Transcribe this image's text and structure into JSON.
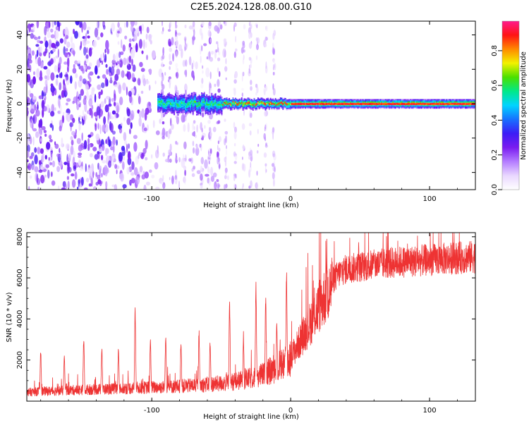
{
  "title": "C2E5.2024.128.08.00.G10",
  "colors": {
    "snr_line": "#ee3333",
    "spectrum_cmap": [
      "#ffffff",
      "#e9d7ff",
      "#b47cff",
      "#7a1cf0",
      "#3c1cf6",
      "#1870ff",
      "#00d4ff",
      "#00e88a",
      "#4ae000",
      "#f2f200",
      "#ff8a00",
      "#ff1414",
      "#ff1a8c"
    ]
  },
  "chart_data": [
    {
      "type": "heatmap",
      "title": "C2E5.2024.128.08.00.G10",
      "xlabel": "Height of straight line (km)",
      "ylabel": "Frequency (Hz)",
      "xlim": [
        -190,
        133
      ],
      "ylim": [
        -50,
        48
      ],
      "xticks": [
        -100,
        0,
        100
      ],
      "yticks": [
        -40,
        -20,
        0,
        20,
        40
      ],
      "colorbar": {
        "label": "Normalized spectral amplitude",
        "range": [
          0,
          0.97
        ],
        "ticks": [
          0.0,
          0.2,
          0.4,
          0.6,
          0.8
        ]
      },
      "features": [
        {
          "x_range": [
            -190,
            -120
          ],
          "description_value": "broadband noise across all frequencies",
          "amplitude": 0.3
        },
        {
          "x_range": [
            -95,
            -50
          ],
          "f_center": 0,
          "f_halfwidth": 6,
          "amplitude": 0.45
        },
        {
          "x_range": [
            -50,
            0
          ],
          "f_center": 0,
          "f_halfwidth": 3,
          "amplitude": 0.85
        },
        {
          "x_range": [
            0,
            133
          ],
          "f_center": 0,
          "f_halfwidth": 2.5,
          "amplitude": 0.95
        }
      ]
    },
    {
      "type": "line",
      "xlabel": "Height of straight line (km)",
      "ylabel": "SNR (10 * v/v)",
      "xlim": [
        -190,
        133
      ],
      "ylim": [
        0,
        8200
      ],
      "xticks": [
        -100,
        0,
        100
      ],
      "yticks": [
        2000,
        4000,
        6000,
        8000
      ],
      "series": [
        {
          "x": [
            -190,
            -180,
            -170,
            -160,
            -150,
            -140,
            -130,
            -120,
            -110,
            -100,
            -90,
            -80,
            -70,
            -60,
            -50,
            -40,
            -30,
            -20,
            -10,
            0,
            5,
            10,
            15,
            20,
            25,
            30,
            35,
            40,
            50,
            60,
            70,
            80,
            90,
            100,
            110,
            120,
            133
          ],
          "y": [
            450,
            500,
            520,
            550,
            580,
            600,
            620,
            650,
            680,
            700,
            720,
            760,
            800,
            850,
            900,
            1000,
            1150,
            1350,
            1700,
            2200,
            2800,
            3400,
            4000,
            4700,
            5300,
            5900,
            6300,
            6500,
            6600,
            6700,
            6800,
            6850,
            6900,
            6950,
            7000,
            7050,
            7100
          ]
        }
      ],
      "spikes": [
        {
          "x": -180,
          "y": 2550
        },
        {
          "x": -163,
          "y": 2300
        },
        {
          "x": -149,
          "y": 3300
        },
        {
          "x": -136,
          "y": 2800
        },
        {
          "x": -124,
          "y": 2700
        },
        {
          "x": -112,
          "y": 4700
        },
        {
          "x": -101,
          "y": 3200
        },
        {
          "x": -90,
          "y": 3300
        },
        {
          "x": -79,
          "y": 3100
        },
        {
          "x": -66,
          "y": 3500
        },
        {
          "x": -58,
          "y": 3100
        },
        {
          "x": -44,
          "y": 4900
        },
        {
          "x": -34,
          "y": 3400
        },
        {
          "x": -25,
          "y": 6000
        },
        {
          "x": -18,
          "y": 5400
        },
        {
          "x": -10,
          "y": 4100
        },
        {
          "x": -3,
          "y": 6700
        },
        {
          "x": 26,
          "y": 8150
        },
        {
          "x": 49,
          "y": 8100
        },
        {
          "x": 56,
          "y": 3500
        },
        {
          "x": 60,
          "y": 7600
        }
      ]
    }
  ]
}
